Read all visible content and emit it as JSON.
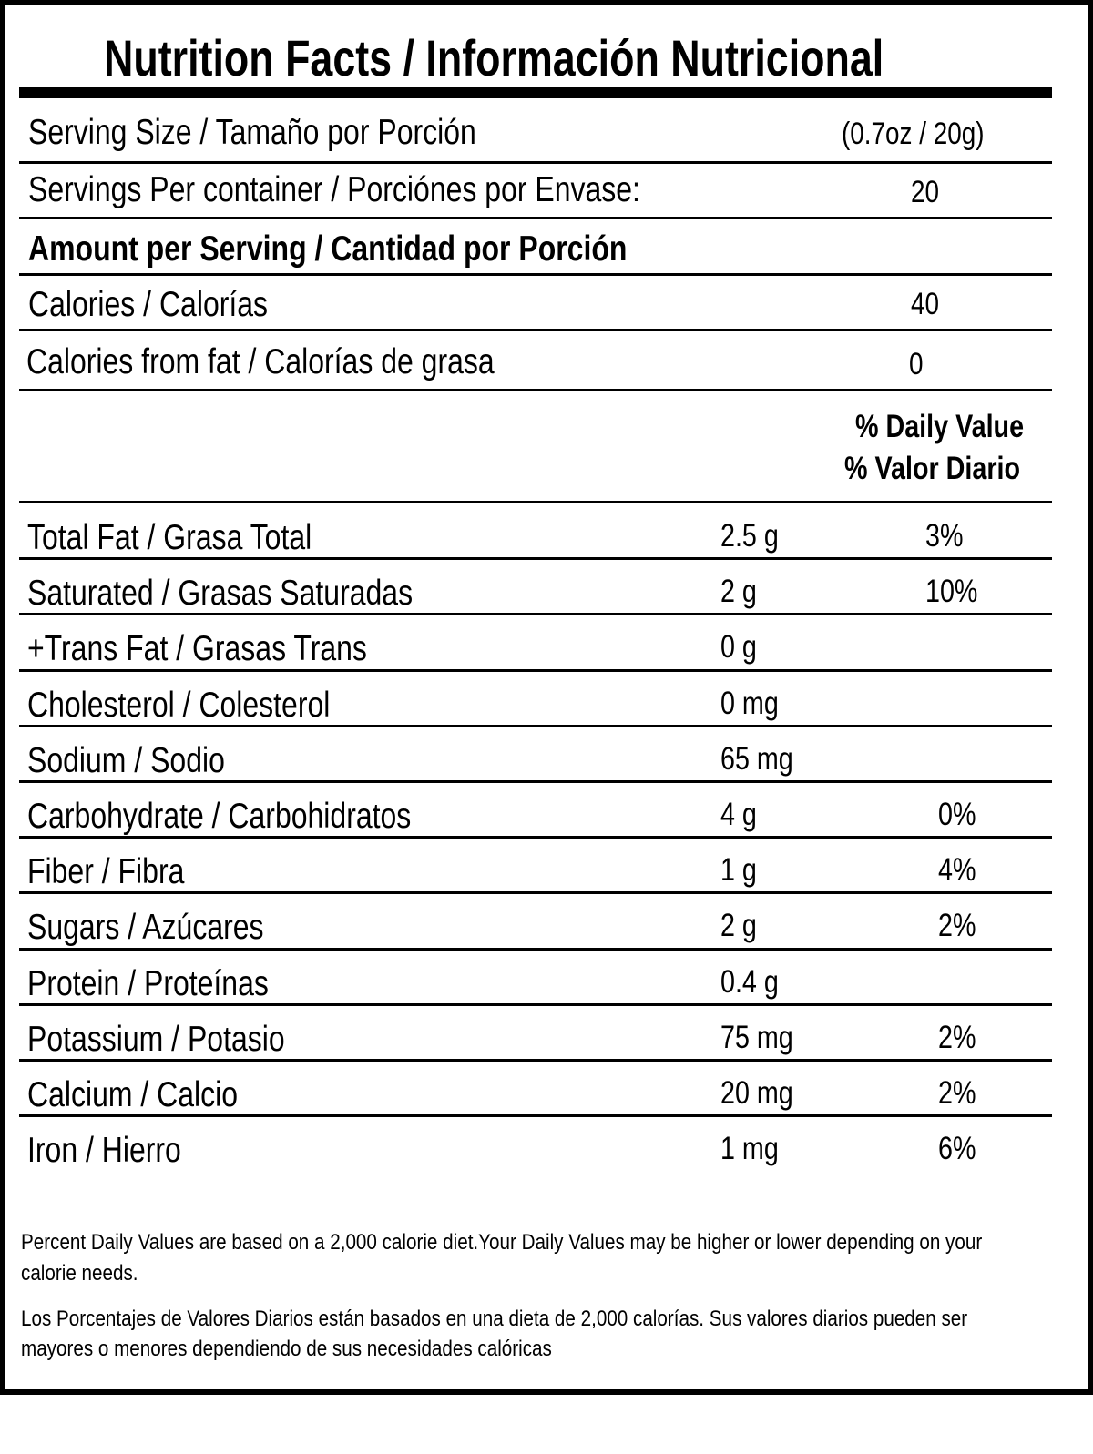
{
  "title": "Nutrition Facts / Información Nutricional",
  "serving_size": {
    "label": "Serving Size / Tamaño por Porción",
    "value": "(0.7oz / 20g)"
  },
  "servings_per_container": {
    "label": "Servings Per container / Porciónes por Envase:",
    "value": "20"
  },
  "amount_per_serving": "Amount per Serving / Cantidad por Porción",
  "calories": {
    "label": "Calories / Calorías",
    "value": "40"
  },
  "calories_from_fat": {
    "label": "Calories from fat / Calorías de grasa",
    "value": "0"
  },
  "daily_value_header": {
    "line1": "% Daily Value",
    "line2": "% Valor Diario"
  },
  "nutrients": [
    {
      "label": "Total Fat / Grasa Total",
      "amount": "2.5 g",
      "dv": "3%"
    },
    {
      "label": "Saturated / Grasas Saturadas",
      "amount": "2 g",
      "dv": "10%"
    },
    {
      "label": "+Trans Fat / Grasas Trans",
      "amount": "0 g",
      "dv": ""
    },
    {
      "label": "Cholesterol / Colesterol",
      "amount": "0 mg",
      "dv": ""
    },
    {
      "label": "Sodium / Sodio",
      "amount": "65 mg",
      "dv": ""
    },
    {
      "label": "Carbohydrate / Carbohidratos",
      "amount": "4 g",
      "dv": "0%"
    },
    {
      "label": "Fiber / Fibra",
      "amount": "1 g",
      "dv": "4%"
    },
    {
      "label": "Sugars / Azúcares",
      "amount": "2 g",
      "dv": "2%"
    },
    {
      "label": "Protein / Proteínas",
      "amount": "0.4 g",
      "dv": ""
    },
    {
      "label": "Potassium / Potasio",
      "amount": "75 mg",
      "dv": "2%"
    },
    {
      "label": "Calcium / Calcio",
      "amount": "20 mg",
      "dv": "2%"
    },
    {
      "label": "Iron / Hierro",
      "amount": "1 mg",
      "dv": "6%"
    }
  ],
  "footnote_en": [
    "Percent Daily Values are based on a 2,000 calorie diet.Your Daily Values may be higher or lower depending on your",
    "calorie needs."
  ],
  "footnote_es": [
    "Los Porcentajes de Valores Diarios están basados en una dieta de 2,000 calorías. Sus valores diarios pueden ser",
    "mayores o menores dependiendo de sus necesidades calóricas"
  ]
}
